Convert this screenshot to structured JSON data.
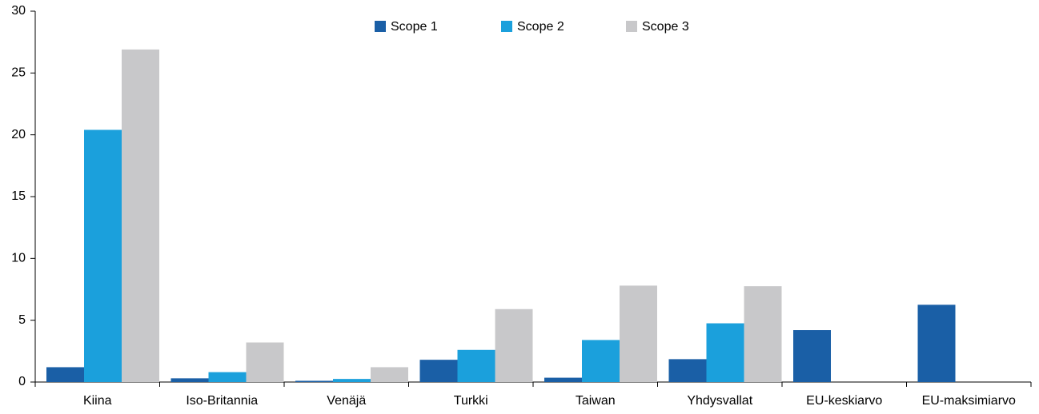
{
  "chart_data": {
    "type": "bar",
    "categories": [
      "Kiina",
      "Iso-Britannia",
      "Venäjä",
      "Turkki",
      "Taiwan",
      "Yhdysvallat",
      "EU-keskiarvo",
      "EU-maksimiarvo"
    ],
    "series": [
      {
        "name": "Scope 1",
        "color": "#1a5fa6",
        "values": [
          1.2,
          0.3,
          0.1,
          1.8,
          0.35,
          1.85,
          4.2,
          6.25
        ]
      },
      {
        "name": "Scope 2",
        "color": "#1ba0dc",
        "values": [
          20.4,
          0.8,
          0.25,
          2.6,
          3.4,
          4.75,
          null,
          null
        ]
      },
      {
        "name": "Scope 3",
        "color": "#c8c8ca",
        "values": [
          26.9,
          3.2,
          1.2,
          5.9,
          7.8,
          7.75,
          null,
          null
        ]
      }
    ],
    "ylim": [
      0,
      30
    ],
    "yticks": [
      0,
      5,
      10,
      15,
      20,
      25,
      30
    ],
    "legend": "top"
  }
}
